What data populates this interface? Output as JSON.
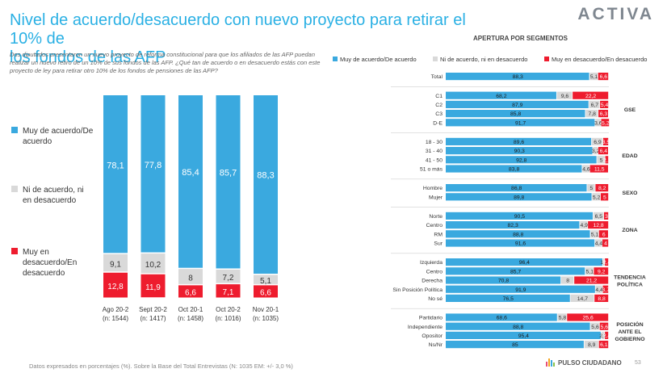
{
  "title_line1": "Nivel de acuerdo/desacuerdo con nuevo proyecto para retirar el 10% de",
  "title_line2": "los fondos de las AFP",
  "logo": "ACTIVA",
  "question": "Dos diputados presentaron un nuevo proyecto de reforma constitucional para que los afiliados de las AFP puedan realizar un nuevo retiro de un 10% de sus fondos de las AFP. ¿Qué tan de acuerdo o en desacuerdo estás con este proyecto de ley para retirar otro 10% de los fondos de pensiones de las AFP?",
  "footnote": "Datos expresados en porcentajes (%). Sobre la Base del Total Entrevistas (N: 1035  EM: +/- 3,0 %)",
  "brand": "PULSO CIUDADANO",
  "page_number": "53",
  "segments_title": "APERTURA POR SEGMENTOS",
  "colors": {
    "agree": "#3aa9df",
    "neutral": "#d9d9d9",
    "disagree": "#ee1c2e",
    "title": "#2ab0e4"
  },
  "chart_data": [
    {
      "type": "bar",
      "stacked": true,
      "orientation": "vertical",
      "categories": [
        "Ago 20-2\n(n: 1544)",
        "Sept 20-2\n(n: 1417)",
        "Oct 20-1\n(n: 1458)",
        "Oct 20-2\n(n: 1016)",
        "Nov 20-1\n(n: 1035)"
      ],
      "series": [
        {
          "name": "Muy de acuerdo/De acuerdo",
          "values": [
            78.1,
            77.8,
            85.4,
            85.7,
            88.3
          ]
        },
        {
          "name": "Ni de acuerdo, ni en desacuerdo",
          "values": [
            9.1,
            10.2,
            8,
            7.2,
            5.1
          ]
        },
        {
          "name": "Muy en desacuerdo/En desacuerdo",
          "values": [
            12.8,
            11.9,
            6.6,
            7.1,
            6.6
          ]
        }
      ],
      "legend_position": "left"
    },
    {
      "type": "bar",
      "stacked": true,
      "orientation": "horizontal",
      "legend": [
        "Muy de acuerdo/De acuerdo",
        "Ni de acuerdo, ni en desacuerdo",
        "Muy en desacuerdo/En desacuerdo"
      ],
      "legend_position": "top",
      "groups": [
        {
          "label": "",
          "rows": [
            {
              "label": "Total",
              "values": [
                88.3,
                5.1,
                6.6
              ]
            }
          ]
        },
        {
          "label": "GSE",
          "rows": [
            {
              "label": "C1",
              "values": [
                68.2,
                9.6,
                22.2
              ]
            },
            {
              "label": "C2",
              "values": [
                87.9,
                6.7,
                5.4
              ]
            },
            {
              "label": "C3",
              "values": [
                85.8,
                7.8,
                6.3
              ]
            },
            {
              "label": "D-E",
              "values": [
                91.7,
                3.6,
                5.2
              ]
            }
          ]
        },
        {
          "label": "EDAD",
          "rows": [
            {
              "label": "18 - 30",
              "values": [
                89.6,
                6.9,
                3.5
              ]
            },
            {
              "label": "31 - 40",
              "values": [
                90.3,
                3.2,
                6.4
              ]
            },
            {
              "label": "41 - 50",
              "values": [
                92.8,
                5,
                2.2
              ]
            },
            {
              "label": "51 o más",
              "values": [
                83.8,
                4.6,
                11.5
              ]
            }
          ]
        },
        {
          "label": "SEXO",
          "rows": [
            {
              "label": "Hombre",
              "values": [
                86.8,
                5,
                8.2
              ]
            },
            {
              "label": "Mujer",
              "values": [
                89.8,
                5.2,
                5
              ]
            }
          ]
        },
        {
          "label": "ZONA",
          "rows": [
            {
              "label": "Norte",
              "values": [
                90.5,
                6.5,
                3
              ]
            },
            {
              "label": "Centro",
              "values": [
                82.3,
                4.9,
                12.8
              ]
            },
            {
              "label": "RM",
              "values": [
                88.8,
                5.1,
                6
              ]
            },
            {
              "label": "Sur",
              "values": [
                91.6,
                4.4,
                4
              ]
            }
          ]
        },
        {
          "label": "TENDENCIA\nPOLÍTICA",
          "rows": [
            {
              "label": "Izquierda",
              "values": [
                96.4,
                1.2,
                2.4
              ]
            },
            {
              "label": "Centro",
              "values": [
                85.7,
                5.1,
                9.2
              ]
            },
            {
              "label": "Derecha",
              "values": [
                70.8,
                8,
                21.2
              ]
            },
            {
              "label": "Sin Posición Política",
              "values": [
                91.9,
                4.4,
                3.7
              ]
            },
            {
              "label": "No sé",
              "values": [
                76.5,
                14.7,
                8.8
              ]
            }
          ]
        },
        {
          "label": "POSICIÓN\nANTE EL\nGOBIERNO",
          "rows": [
            {
              "label": "Partidario",
              "values": [
                68.6,
                5.8,
                25.6
              ]
            },
            {
              "label": "Independiente",
              "values": [
                88.8,
                5.6,
                5.6
              ]
            },
            {
              "label": "Opositor",
              "values": [
                95.4,
                2.2,
                2.4
              ]
            },
            {
              "label": "Ns/Nr",
              "values": [
                85,
                8.9,
                6.1
              ]
            }
          ]
        }
      ]
    }
  ]
}
